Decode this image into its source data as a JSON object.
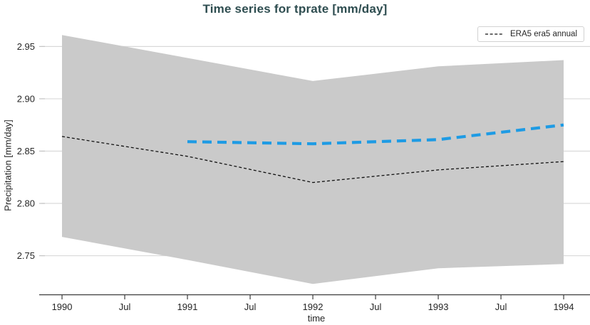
{
  "title": "Time series for tprate [mm/day]",
  "legend": {
    "position": "top-right",
    "entries": [
      {
        "label": "ERA5 era5 annual",
        "line_style": "dashed",
        "color": "#000000"
      }
    ]
  },
  "colors": {
    "title": "#2E4D50",
    "band_fill": "#cacaca",
    "gridline": "#d9d9d9",
    "axis_line": "#3c3c3c",
    "tick_text": "#262626",
    "series_black": "#111111",
    "series_blue": "#1E9BE4",
    "legend_border": "#d2d2d2"
  },
  "chart_data": {
    "type": "line",
    "title": "Time series for tprate [mm/day]",
    "xlabel": "time",
    "ylabel": "Precipitation [mm/day]",
    "grid": "horizontal",
    "legend_position": "top-right",
    "x_domain": [
      1989.835,
      1994.21
    ],
    "y_domain": [
      2.713,
      2.972
    ],
    "x_ticks": [
      {
        "value": 1990.0,
        "label": "1990"
      },
      {
        "value": 1990.5,
        "label": "Jul"
      },
      {
        "value": 1991.0,
        "label": "1991"
      },
      {
        "value": 1991.5,
        "label": "Jul"
      },
      {
        "value": 1992.0,
        "label": "1992"
      },
      {
        "value": 1992.5,
        "label": "Jul"
      },
      {
        "value": 1993.0,
        "label": "1993"
      },
      {
        "value": 1993.5,
        "label": "Jul"
      },
      {
        "value": 1994.0,
        "label": "1994"
      }
    ],
    "y_ticks": [
      {
        "value": 2.75,
        "label": "2.75"
      },
      {
        "value": 2.8,
        "label": "2.80"
      },
      {
        "value": 2.85,
        "label": "2.85"
      },
      {
        "value": 2.9,
        "label": "2.90"
      },
      {
        "value": 2.95,
        "label": "2.95"
      }
    ],
    "band": {
      "name": "uncertainty-band",
      "color": "#cacaca",
      "x": [
        1990,
        1991,
        1992,
        1993,
        1994
      ],
      "upper": [
        2.961,
        2.939,
        2.917,
        2.931,
        2.937
      ],
      "lower": [
        2.768,
        2.746,
        2.723,
        2.738,
        2.742
      ]
    },
    "series": [
      {
        "name": "ERA5 era5 annual",
        "color": "#111111",
        "dash": "4 3",
        "width": 1.3,
        "x": [
          1990,
          1991,
          1992,
          1993,
          1994
        ],
        "values": [
          2.864,
          2.845,
          2.82,
          2.832,
          2.84
        ]
      },
      {
        "name": "blue-dashed-forecast",
        "color": "#1E9BE4",
        "dash": "13 8",
        "width": 4.2,
        "x": [
          1991,
          1992,
          1993,
          1994
        ],
        "values": [
          2.859,
          2.857,
          2.861,
          2.875
        ]
      }
    ]
  }
}
